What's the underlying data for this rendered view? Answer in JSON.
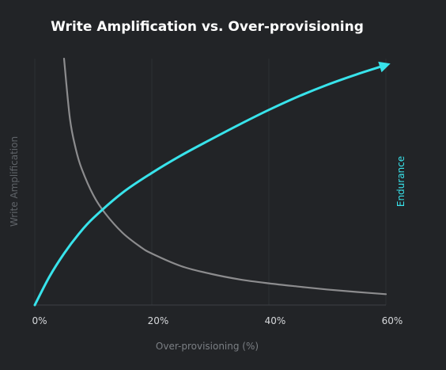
{
  "chart_data": {
    "type": "line",
    "title": "Write Amplification vs. Over-provisioning",
    "xlabel": "Over-provisioning (%)",
    "ylabel": "Write Amplification",
    "y2label": "Endurance",
    "xlim": [
      0,
      60
    ],
    "x_ticks": [
      {
        "value": 0,
        "label": "0%"
      },
      {
        "value": 20,
        "label": "20%"
      },
      {
        "value": 40,
        "label": "40%"
      },
      {
        "value": 60,
        "label": "60%"
      }
    ],
    "grid": true,
    "y_tick_labels": false,
    "series": [
      {
        "name": "Write Amplification",
        "color": "#8c8c8e",
        "x": [
          5,
          6,
          7,
          8,
          10,
          12,
          15,
          18,
          20,
          25,
          30,
          35,
          40,
          45,
          50,
          55,
          60
        ],
        "values": [
          100,
          75.7,
          63.4,
          55.4,
          44.6,
          37.3,
          29.3,
          23.7,
          20.9,
          15.8,
          12.7,
          10.4,
          8.8,
          7.5,
          6.3,
          5.3,
          4.4
        ]
      },
      {
        "name": "Endurance",
        "color": "#38e3eb",
        "arrow": true,
        "x": [
          0,
          2.5,
          5,
          7.5,
          10,
          15,
          20,
          25,
          30,
          35,
          40,
          45,
          50,
          55,
          60
        ],
        "values": [
          0,
          11.5,
          20.9,
          28.8,
          35.3,
          45.6,
          53.6,
          60.7,
          67.1,
          73.3,
          79.2,
          84.6,
          89.4,
          93.6,
          97.4
        ]
      }
    ]
  },
  "colors": {
    "background": "#222427",
    "grid": "#2c2f33",
    "axis": "#3d4045",
    "write_amplification": "#8c8c8e",
    "endurance": "#38e3eb"
  }
}
